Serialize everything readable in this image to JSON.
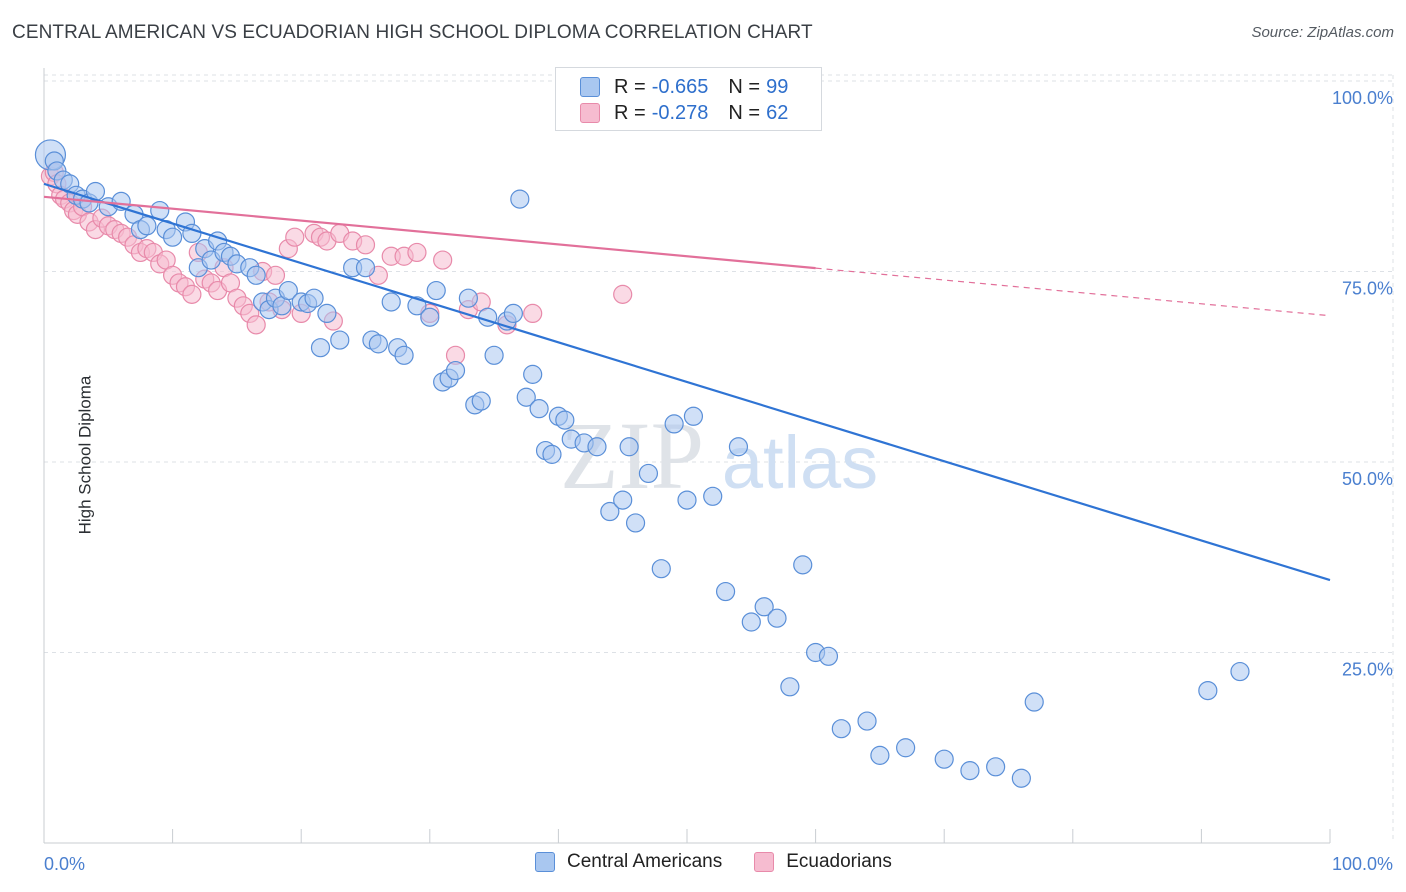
{
  "title": "CENTRAL AMERICAN VS ECUADORIAN HIGH SCHOOL DIPLOMA CORRELATION CHART",
  "source": "Source: ZipAtlas.com",
  "watermark": {
    "zip": "ZIP",
    "atlas": "atlas"
  },
  "legend_top": [
    {
      "r_label": "R = ",
      "r_value": "-0.665",
      "n_label": "N = ",
      "n_value": "99"
    },
    {
      "r_label": "R = ",
      "r_value": "-0.278",
      "n_label": "N = ",
      "n_value": "62"
    }
  ],
  "colors": {
    "blue_fill": "#a9c7f0",
    "blue_stroke": "#5a8fd8",
    "blue_line": "#2f74d4",
    "pink_fill": "#f6bcd0",
    "pink_stroke": "#e88aaa",
    "pink_line": "#e2709a",
    "axis_text": "#4a7fcf",
    "grid": "#dde1e6"
  },
  "chart_data": {
    "type": "scatter",
    "title": "CENTRAL AMERICAN VS ECUADORIAN HIGH SCHOOL DIPLOMA CORRELATION CHART",
    "xlabel": "",
    "ylabel": "High School Diploma",
    "xlim": [
      0,
      100
    ],
    "ylim": [
      0,
      100
    ],
    "x_tick_labels": [
      "0.0%",
      "100.0%"
    ],
    "y_ticks": [
      {
        "value": 100,
        "label": "100.0%"
      },
      {
        "value": 75,
        "label": "75.0%"
      },
      {
        "value": 50,
        "label": "50.0%"
      },
      {
        "value": 25,
        "label": "25.0%"
      }
    ],
    "series": [
      {
        "name": "Central Americans",
        "r": -0.665,
        "n": 99,
        "trend": {
          "x0": 0,
          "y0": 86.5,
          "x1": 100,
          "y1": 34.5,
          "dash_from": 100
        },
        "points": [
          [
            0.5,
            90.3
          ],
          [
            0.8,
            89.5
          ],
          [
            1.0,
            88.2
          ],
          [
            1.5,
            87.0
          ],
          [
            2.0,
            86.5
          ],
          [
            2.5,
            85.0
          ],
          [
            3.0,
            84.5
          ],
          [
            3.5,
            84.0
          ],
          [
            4.0,
            85.5
          ],
          [
            5.0,
            83.5
          ],
          [
            6.0,
            84.2
          ],
          [
            7.0,
            82.5
          ],
          [
            7.5,
            80.5
          ],
          [
            8.0,
            81.0
          ],
          [
            9.0,
            83.0
          ],
          [
            9.5,
            80.5
          ],
          [
            10.0,
            79.5
          ],
          [
            11.0,
            81.5
          ],
          [
            11.5,
            80.0
          ],
          [
            12.0,
            75.5
          ],
          [
            12.5,
            78.0
          ],
          [
            13.0,
            76.5
          ],
          [
            13.5,
            79.0
          ],
          [
            14.0,
            77.5
          ],
          [
            14.5,
            77.0
          ],
          [
            15.0,
            76.0
          ],
          [
            16.0,
            75.5
          ],
          [
            16.5,
            74.5
          ],
          [
            17.0,
            71.0
          ],
          [
            17.5,
            70.0
          ],
          [
            18.0,
            71.5
          ],
          [
            18.5,
            70.5
          ],
          [
            19.0,
            72.5
          ],
          [
            20.0,
            71.0
          ],
          [
            20.5,
            70.8
          ],
          [
            21.0,
            71.5
          ],
          [
            21.5,
            65.0
          ],
          [
            22.0,
            69.5
          ],
          [
            23.0,
            66.0
          ],
          [
            24.0,
            75.5
          ],
          [
            25.0,
            75.5
          ],
          [
            25.5,
            66.0
          ],
          [
            26.0,
            65.5
          ],
          [
            27.0,
            71.0
          ],
          [
            27.5,
            65.0
          ],
          [
            28.0,
            64.0
          ],
          [
            29.0,
            70.5
          ],
          [
            30.0,
            69.0
          ],
          [
            30.5,
            72.5
          ],
          [
            31.0,
            60.5
          ],
          [
            31.5,
            61.0
          ],
          [
            32.0,
            62.0
          ],
          [
            33.0,
            71.5
          ],
          [
            33.5,
            57.5
          ],
          [
            34.0,
            58.0
          ],
          [
            34.5,
            69.0
          ],
          [
            35.0,
            64.0
          ],
          [
            36.0,
            68.5
          ],
          [
            36.5,
            69.5
          ],
          [
            37.0,
            84.5
          ],
          [
            37.5,
            58.5
          ],
          [
            38.0,
            61.5
          ],
          [
            38.5,
            57.0
          ],
          [
            39.0,
            51.5
          ],
          [
            39.5,
            51.0
          ],
          [
            40.0,
            56.0
          ],
          [
            40.5,
            55.5
          ],
          [
            41.0,
            53.0
          ],
          [
            42.0,
            52.5
          ],
          [
            43.0,
            52.0
          ],
          [
            44.0,
            43.5
          ],
          [
            45.0,
            45.0
          ],
          [
            45.5,
            52.0
          ],
          [
            46.0,
            42.0
          ],
          [
            47.0,
            48.5
          ],
          [
            48.0,
            36.0
          ],
          [
            49.0,
            55.0
          ],
          [
            50.0,
            45.0
          ],
          [
            50.5,
            56.0
          ],
          [
            52.0,
            45.5
          ],
          [
            53.0,
            33.0
          ],
          [
            54.0,
            52.0
          ],
          [
            55.0,
            29.0
          ],
          [
            56.0,
            31.0
          ],
          [
            57.0,
            29.5
          ],
          [
            58.0,
            20.5
          ],
          [
            59.0,
            36.5
          ],
          [
            60.0,
            25.0
          ],
          [
            61.0,
            24.5
          ],
          [
            62.0,
            15.0
          ],
          [
            64.0,
            16.0
          ],
          [
            65.0,
            11.5
          ],
          [
            67.0,
            12.5
          ],
          [
            70.0,
            11.0
          ],
          [
            72.0,
            9.5
          ],
          [
            74.0,
            10.0
          ],
          [
            76.0,
            8.5
          ],
          [
            77.0,
            18.5
          ],
          [
            90.5,
            20.0
          ],
          [
            93.0,
            22.5
          ]
        ]
      },
      {
        "name": "Ecuadorians",
        "r": -0.278,
        "n": 62,
        "trend": {
          "x0": 0,
          "y0": 84.8,
          "x1": 100,
          "y1": 69.2,
          "dash_from": 60
        },
        "points": [
          [
            0.5,
            87.5
          ],
          [
            0.8,
            88.0
          ],
          [
            1.0,
            86.5
          ],
          [
            1.3,
            85.0
          ],
          [
            1.6,
            84.5
          ],
          [
            2.0,
            84.0
          ],
          [
            2.3,
            83.0
          ],
          [
            2.6,
            82.5
          ],
          [
            3.0,
            83.5
          ],
          [
            3.5,
            81.5
          ],
          [
            4.0,
            80.5
          ],
          [
            4.5,
            82.0
          ],
          [
            5.0,
            81.0
          ],
          [
            5.5,
            80.5
          ],
          [
            6.0,
            80.0
          ],
          [
            6.5,
            79.5
          ],
          [
            7.0,
            78.5
          ],
          [
            7.5,
            77.5
          ],
          [
            8.0,
            78.0
          ],
          [
            8.5,
            77.5
          ],
          [
            9.0,
            76.0
          ],
          [
            9.5,
            76.5
          ],
          [
            10.0,
            74.5
          ],
          [
            10.5,
            73.5
          ],
          [
            11.0,
            73.0
          ],
          [
            11.5,
            72.0
          ],
          [
            12.0,
            77.5
          ],
          [
            12.5,
            74.0
          ],
          [
            13.0,
            73.5
          ],
          [
            13.5,
            72.5
          ],
          [
            14.0,
            75.5
          ],
          [
            14.5,
            73.5
          ],
          [
            15.0,
            71.5
          ],
          [
            15.5,
            70.5
          ],
          [
            16.0,
            69.5
          ],
          [
            16.5,
            68.0
          ],
          [
            17.0,
            75.0
          ],
          [
            17.5,
            71.0
          ],
          [
            18.0,
            74.5
          ],
          [
            18.5,
            70.0
          ],
          [
            19.0,
            78.0
          ],
          [
            19.5,
            79.5
          ],
          [
            20.0,
            69.5
          ],
          [
            21.0,
            80.0
          ],
          [
            21.5,
            79.5
          ],
          [
            22.0,
            79.0
          ],
          [
            22.5,
            68.5
          ],
          [
            23.0,
            80.0
          ],
          [
            24.0,
            79.0
          ],
          [
            25.0,
            78.5
          ],
          [
            26.0,
            74.5
          ],
          [
            27.0,
            77.0
          ],
          [
            28.0,
            77.0
          ],
          [
            29.0,
            77.5
          ],
          [
            30.0,
            69.5
          ],
          [
            31.0,
            76.5
          ],
          [
            32.0,
            64.0
          ],
          [
            33.0,
            70.0
          ],
          [
            34.0,
            71.0
          ],
          [
            36.0,
            68.0
          ],
          [
            38.0,
            69.5
          ],
          [
            45.0,
            72.0
          ]
        ]
      }
    ]
  }
}
